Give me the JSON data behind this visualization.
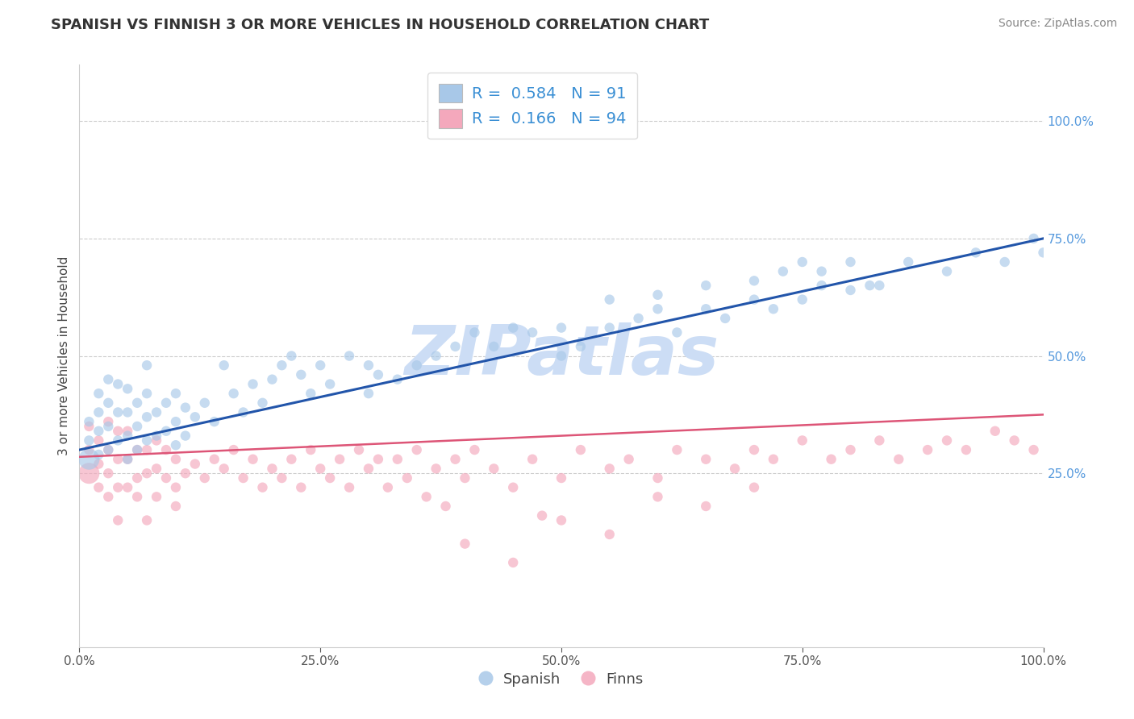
{
  "title": "SPANISH VS FINNISH 3 OR MORE VEHICLES IN HOUSEHOLD CORRELATION CHART",
  "source": "Source: ZipAtlas.com",
  "ylabel": "3 or more Vehicles in Household",
  "spanish_R": 0.584,
  "spanish_N": 91,
  "finns_R": 0.166,
  "finns_N": 94,
  "blue_color": "#a8c8e8",
  "blue_line_color": "#2255aa",
  "pink_color": "#f4a8bc",
  "pink_line_color": "#dd5577",
  "ytick_color": "#5599dd",
  "watermark_color": "#ccddf5",
  "xlim": [
    0.0,
    1.0
  ],
  "ylim": [
    -0.12,
    1.12
  ],
  "x_tick_vals": [
    0.0,
    0.25,
    0.5,
    0.75,
    1.0
  ],
  "x_tick_labels": [
    "0.0%",
    "25.0%",
    "50.0%",
    "75.0%",
    "100.0%"
  ],
  "y_tick_vals": [
    0.25,
    0.5,
    0.75,
    1.0
  ],
  "y_tick_labels": [
    "25.0%",
    "50.0%",
    "75.0%",
    "100.0%"
  ],
  "blue_line_start": 0.3,
  "blue_line_end": 0.75,
  "pink_line_start": 0.285,
  "pink_line_end": 0.375,
  "sp_x": [
    0.01,
    0.01,
    0.01,
    0.02,
    0.02,
    0.02,
    0.02,
    0.03,
    0.03,
    0.03,
    0.03,
    0.04,
    0.04,
    0.04,
    0.05,
    0.05,
    0.05,
    0.05,
    0.06,
    0.06,
    0.06,
    0.07,
    0.07,
    0.07,
    0.07,
    0.08,
    0.08,
    0.09,
    0.09,
    0.1,
    0.1,
    0.1,
    0.11,
    0.11,
    0.12,
    0.13,
    0.14,
    0.15,
    0.16,
    0.17,
    0.18,
    0.19,
    0.2,
    0.21,
    0.22,
    0.23,
    0.24,
    0.25,
    0.26,
    0.28,
    0.3,
    0.3,
    0.31,
    0.33,
    0.35,
    0.37,
    0.39,
    0.41,
    0.43,
    0.45,
    0.47,
    0.5,
    0.5,
    0.52,
    0.55,
    0.58,
    0.6,
    0.62,
    0.65,
    0.67,
    0.7,
    0.72,
    0.75,
    0.77,
    0.8,
    0.82,
    0.55,
    0.6,
    0.65,
    0.7,
    0.73,
    0.75,
    0.77,
    0.8,
    0.83,
    0.86,
    0.9,
    0.93,
    0.96,
    0.99,
    1.0
  ],
  "sp_y": [
    0.28,
    0.32,
    0.36,
    0.29,
    0.34,
    0.38,
    0.42,
    0.3,
    0.35,
    0.4,
    0.45,
    0.32,
    0.38,
    0.44,
    0.28,
    0.33,
    0.38,
    0.43,
    0.3,
    0.35,
    0.4,
    0.32,
    0.37,
    0.42,
    0.48,
    0.33,
    0.38,
    0.34,
    0.4,
    0.31,
    0.36,
    0.42,
    0.33,
    0.39,
    0.37,
    0.4,
    0.36,
    0.48,
    0.42,
    0.38,
    0.44,
    0.4,
    0.45,
    0.48,
    0.5,
    0.46,
    0.42,
    0.48,
    0.44,
    0.5,
    0.42,
    0.48,
    0.46,
    0.45,
    0.48,
    0.5,
    0.52,
    0.55,
    0.52,
    0.56,
    0.55,
    0.5,
    0.56,
    0.52,
    0.56,
    0.58,
    0.6,
    0.55,
    0.6,
    0.58,
    0.62,
    0.6,
    0.62,
    0.65,
    0.64,
    0.65,
    0.62,
    0.63,
    0.65,
    0.66,
    0.68,
    0.7,
    0.68,
    0.7,
    0.65,
    0.7,
    0.68,
    0.72,
    0.7,
    0.75,
    0.72
  ],
  "sp_sizes": [
    350,
    80,
    80,
    80,
    80,
    80,
    80,
    80,
    80,
    80,
    80,
    80,
    80,
    80,
    80,
    80,
    80,
    80,
    80,
    80,
    80,
    80,
    80,
    80,
    80,
    80,
    80,
    80,
    80,
    80,
    80,
    80,
    80,
    80,
    80,
    80,
    80,
    80,
    80,
    80,
    80,
    80,
    80,
    80,
    80,
    80,
    80,
    80,
    80,
    80,
    80,
    80,
    80,
    80,
    80,
    80,
    80,
    80,
    80,
    80,
    80,
    80,
    80,
    80,
    80,
    80,
    80,
    80,
    80,
    80,
    80,
    80,
    80,
    80,
    80,
    80,
    80,
    80,
    80,
    80,
    80,
    80,
    80,
    80,
    80,
    80,
    80,
    80,
    80,
    80,
    80
  ],
  "fi_x": [
    0.01,
    0.01,
    0.01,
    0.02,
    0.02,
    0.02,
    0.03,
    0.03,
    0.03,
    0.03,
    0.04,
    0.04,
    0.04,
    0.04,
    0.05,
    0.05,
    0.05,
    0.06,
    0.06,
    0.06,
    0.07,
    0.07,
    0.07,
    0.08,
    0.08,
    0.08,
    0.09,
    0.09,
    0.1,
    0.1,
    0.1,
    0.11,
    0.12,
    0.13,
    0.14,
    0.15,
    0.16,
    0.17,
    0.18,
    0.19,
    0.2,
    0.21,
    0.22,
    0.23,
    0.24,
    0.25,
    0.26,
    0.27,
    0.28,
    0.29,
    0.3,
    0.31,
    0.32,
    0.33,
    0.34,
    0.35,
    0.36,
    0.37,
    0.38,
    0.39,
    0.4,
    0.41,
    0.43,
    0.45,
    0.47,
    0.48,
    0.5,
    0.52,
    0.55,
    0.57,
    0.6,
    0.62,
    0.65,
    0.68,
    0.7,
    0.72,
    0.75,
    0.78,
    0.8,
    0.83,
    0.85,
    0.88,
    0.9,
    0.92,
    0.95,
    0.97,
    0.99,
    0.4,
    0.45,
    0.5,
    0.55,
    0.6,
    0.65,
    0.7
  ],
  "fi_y": [
    0.25,
    0.3,
    0.35,
    0.22,
    0.27,
    0.32,
    0.2,
    0.25,
    0.3,
    0.36,
    0.22,
    0.28,
    0.34,
    0.15,
    0.22,
    0.28,
    0.34,
    0.24,
    0.3,
    0.2,
    0.25,
    0.3,
    0.15,
    0.26,
    0.32,
    0.2,
    0.24,
    0.3,
    0.22,
    0.28,
    0.18,
    0.25,
    0.27,
    0.24,
    0.28,
    0.26,
    0.3,
    0.24,
    0.28,
    0.22,
    0.26,
    0.24,
    0.28,
    0.22,
    0.3,
    0.26,
    0.24,
    0.28,
    0.22,
    0.3,
    0.26,
    0.28,
    0.22,
    0.28,
    0.24,
    0.3,
    0.2,
    0.26,
    0.18,
    0.28,
    0.24,
    0.3,
    0.26,
    0.22,
    0.28,
    0.16,
    0.24,
    0.3,
    0.26,
    0.28,
    0.24,
    0.3,
    0.28,
    0.26,
    0.3,
    0.28,
    0.32,
    0.28,
    0.3,
    0.32,
    0.28,
    0.3,
    0.32,
    0.3,
    0.34,
    0.32,
    0.3,
    0.1,
    0.06,
    0.15,
    0.12,
    0.2,
    0.18,
    0.22
  ],
  "fi_sizes": [
    350,
    80,
    80,
    80,
    80,
    80,
    80,
    80,
    80,
    80,
    80,
    80,
    80,
    80,
    80,
    80,
    80,
    80,
    80,
    80,
    80,
    80,
    80,
    80,
    80,
    80,
    80,
    80,
    80,
    80,
    80,
    80,
    80,
    80,
    80,
    80,
    80,
    80,
    80,
    80,
    80,
    80,
    80,
    80,
    80,
    80,
    80,
    80,
    80,
    80,
    80,
    80,
    80,
    80,
    80,
    80,
    80,
    80,
    80,
    80,
    80,
    80,
    80,
    80,
    80,
    80,
    80,
    80,
    80,
    80,
    80,
    80,
    80,
    80,
    80,
    80,
    80,
    80,
    80,
    80,
    80,
    80,
    80,
    80,
    80,
    80,
    80,
    80,
    80,
    80,
    80,
    80,
    80,
    80
  ]
}
